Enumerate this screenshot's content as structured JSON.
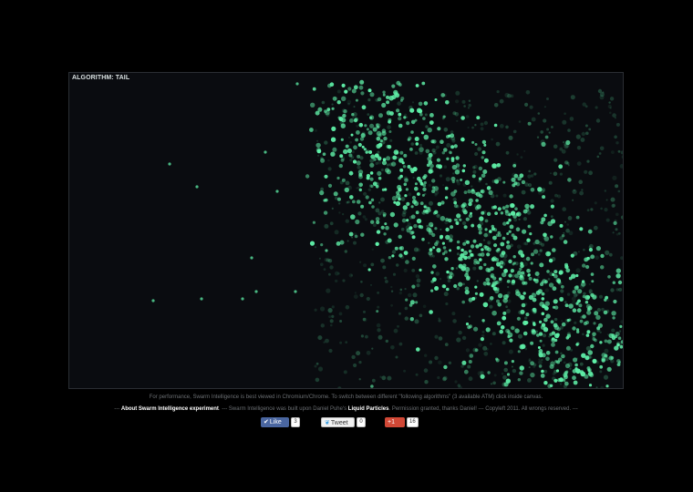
{
  "canvas": {
    "algorithm_label": "ALGORITHM: TAIL",
    "particle_color": "#5ff0a8",
    "background_color": "#0a0c10"
  },
  "footer": {
    "performance_note": "For performance, Swarm Intelligence is best viewed in Chromium/Chrome. To switch between different \"following algorithms\" (3 available ATM) click inside canvas.",
    "about_prefix": "---",
    "about_link": "About Swarm Intelligence experiment",
    "about_mid": ". --- Swarm Intelligence was built upon Daniel Puhe's",
    "liquid_link": "Liquid Particles",
    "about_suffix": ". Permission granted, thanks Daniel! --- Copyleft 2011. All wrongs reserved. ---"
  },
  "share": {
    "like_label": "Like",
    "like_count": "3",
    "tweet_label": "Tweet",
    "tweet_count": "0",
    "gplus_label": "+1",
    "gplus_count": "16"
  }
}
